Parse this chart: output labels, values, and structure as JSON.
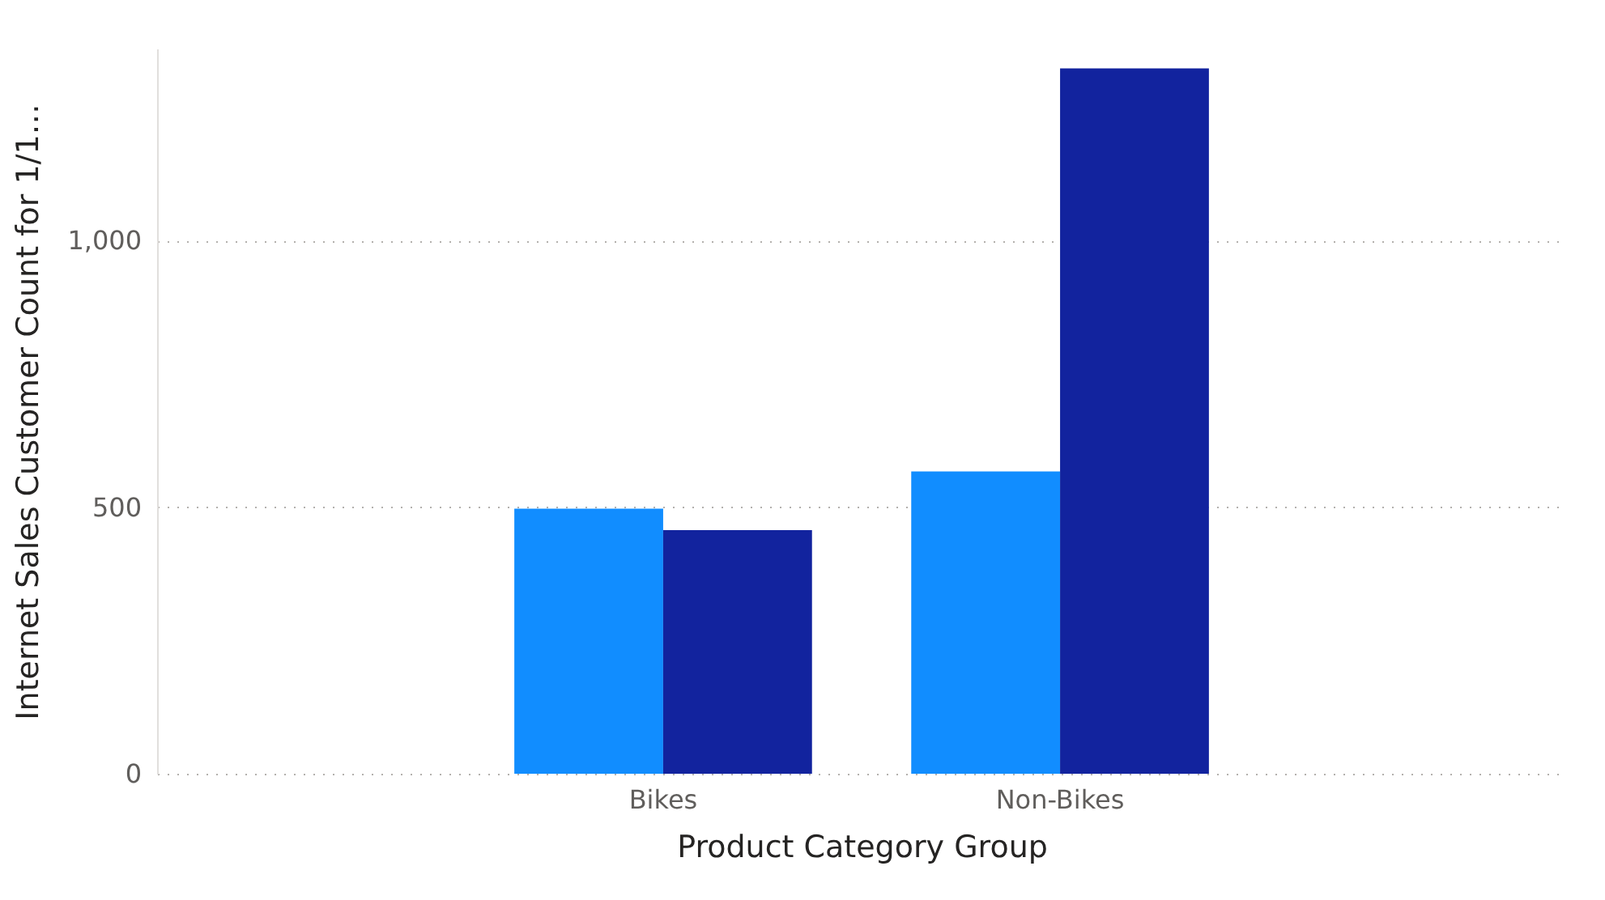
{
  "chart_data": {
    "type": "bar",
    "xlabel": "Product Category Group",
    "ylabel": "Internet Sales Customer Count for 1/1…",
    "categories": [
      "Bikes",
      "Non-Bikes"
    ],
    "series": [
      {
        "color": "#118dff",
        "values": [
          497,
          567
        ]
      },
      {
        "color": "#12239e",
        "values": [
          457,
          1323
        ]
      }
    ],
    "ylim": [
      0,
      1360
    ],
    "yticks": [
      0,
      500,
      {
        "value": 1000,
        "label": "1,000"
      }
    ],
    "grid": "y",
    "legend": false
  }
}
